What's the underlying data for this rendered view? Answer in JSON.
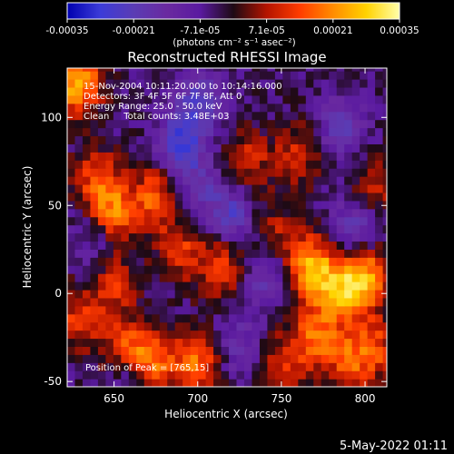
{
  "chart_data": {
    "type": "heatmap",
    "title": "Reconstructed RHESSI Image",
    "xlabel": "Heliocentric X (arcsec)",
    "ylabel": "Heliocentric Y (arcsec)",
    "xlim": [
      622,
      813
    ],
    "ylim": [
      -53,
      128
    ],
    "x_ticks": [
      650,
      700,
      750,
      800
    ],
    "y_ticks": [
      -50,
      0,
      50,
      100
    ],
    "colorbar": {
      "range": [
        -0.00035,
        0.00035
      ],
      "tick_labels": [
        "-0.00035",
        "-0.00021",
        "-7.1e-05",
        "7.1e-05",
        "0.00021",
        "0.00035"
      ],
      "unit_label": "(photons cm⁻² s⁻¹ asec⁻²)"
    },
    "annotations": [
      "15-Nov-2004 10:11:20.000 to 10:14:16.000",
      "Detectors: 3F 4F 5F 6F 7F 8F, Att 0",
      "Energy Range: 25.0 - 50.0 keV",
      "Clean     Total counts: 3.48E+03"
    ],
    "peak_label": "Position of Peak = [765,15]",
    "colormap": [
      "#0000b0",
      "#3c3cd8",
      "#5a3cb4",
      "#6a2aa0",
      "#5a1aa0",
      "#1e0a14",
      "#b41400",
      "#ff3c00",
      "#ff8c00",
      "#ffd200",
      "#ffffaa"
    ],
    "bright_regions": [
      {
        "x": 628,
        "y": 120,
        "intensity": 0.0003
      },
      {
        "x": 640,
        "y": 65,
        "intensity": 0.00018
      },
      {
        "x": 650,
        "y": 45,
        "intensity": 0.00022
      },
      {
        "x": 675,
        "y": 55,
        "intensity": 0.0002
      },
      {
        "x": 650,
        "y": 5,
        "intensity": 0.00015
      },
      {
        "x": 690,
        "y": 25,
        "intensity": 0.00015
      },
      {
        "x": 715,
        "y": 15,
        "intensity": 0.00018
      },
      {
        "x": 730,
        "y": 75,
        "intensity": 0.00014
      },
      {
        "x": 745,
        "y": 35,
        "intensity": 0.00012
      },
      {
        "x": 760,
        "y": 80,
        "intensity": 0.00014
      },
      {
        "x": 768,
        "y": 15,
        "intensity": 0.0003
      },
      {
        "x": 785,
        "y": 0,
        "intensity": 0.00022
      },
      {
        "x": 800,
        "y": 10,
        "intensity": 0.00026
      },
      {
        "x": 805,
        "y": -30,
        "intensity": 0.00017
      },
      {
        "x": 790,
        "y": -40,
        "intensity": 0.00015
      },
      {
        "x": 770,
        "y": -25,
        "intensity": 0.0002
      },
      {
        "x": 750,
        "y": -40,
        "intensity": 0.00013
      },
      {
        "x": 700,
        "y": -40,
        "intensity": 0.00022
      },
      {
        "x": 672,
        "y": -38,
        "intensity": 0.00024
      },
      {
        "x": 655,
        "y": -30,
        "intensity": 0.00015
      },
      {
        "x": 628,
        "y": -15,
        "intensity": 0.00015
      },
      {
        "x": 805,
        "y": 60,
        "intensity": 0.00015
      }
    ],
    "dark_regions": [
      {
        "x": 690,
        "y": 85,
        "intensity": -0.00022
      },
      {
        "x": 720,
        "y": 45,
        "intensity": -0.00018
      },
      {
        "x": 700,
        "y": 110,
        "intensity": -0.00018
      },
      {
        "x": 700,
        "y": 60,
        "intensity": -0.00012
      },
      {
        "x": 795,
        "y": 40,
        "intensity": -0.00016
      },
      {
        "x": 785,
        "y": 95,
        "intensity": -0.00015
      },
      {
        "x": 740,
        "y": 10,
        "intensity": -0.00015
      },
      {
        "x": 660,
        "y": -50,
        "intensity": -0.00012
      },
      {
        "x": 725,
        "y": -30,
        "intensity": -0.00012
      },
      {
        "x": 640,
        "y": 30,
        "intensity": -0.0001
      }
    ]
  },
  "footer": {
    "date": "5-May-2022 01:11"
  }
}
